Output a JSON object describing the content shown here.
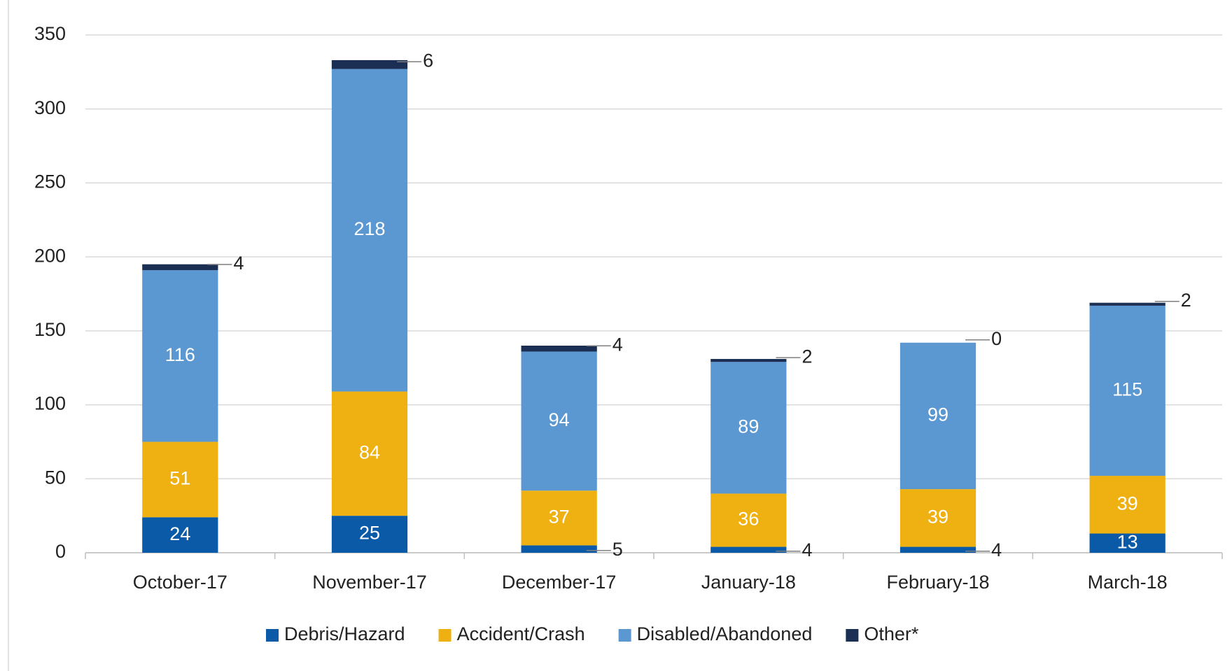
{
  "chart_data": {
    "type": "stacked_bar",
    "categories": [
      "October-17",
      "November-17",
      "December-17",
      "January-18",
      "February-18",
      "March-18"
    ],
    "series": [
      {
        "name": "Debris/Hazard",
        "color": "#0a5aa8",
        "values": [
          24,
          25,
          5,
          4,
          4,
          13
        ]
      },
      {
        "name": "Accident/Crash",
        "color": "#eeb111",
        "values": [
          51,
          84,
          37,
          36,
          39,
          39
        ]
      },
      {
        "name": "Disabled/Abandoned",
        "color": "#5b97d1",
        "values": [
          116,
          218,
          94,
          89,
          99,
          115
        ]
      },
      {
        "name": "Other*",
        "color": "#1b2f55",
        "values": [
          4,
          6,
          4,
          2,
          0,
          2
        ]
      }
    ],
    "ylim": [
      0,
      350
    ],
    "yticks": [
      0,
      50,
      100,
      150,
      200,
      250,
      300,
      350
    ],
    "grid": true,
    "legend": "bottom"
  }
}
